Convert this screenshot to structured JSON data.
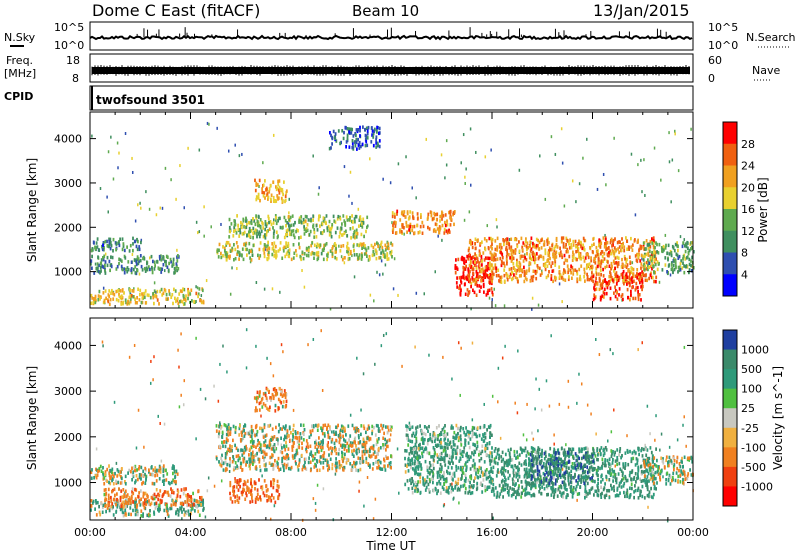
{
  "header": {
    "station": "Dome C East (fitACF)",
    "beam": "Beam 10",
    "date": "13/Jan/2015"
  },
  "top_panels": {
    "nsky_label": "N.Sky",
    "nsky_ticks": [
      "10^5",
      "10^0"
    ],
    "nsearch_label": "N.Search",
    "nsearch_ticks": [
      "10^5",
      "10^0"
    ],
    "freq_label": "Freq.",
    "freq_unit": "[MHz]",
    "freq_ticks": [
      "18",
      "8"
    ],
    "nave_label": "Nave",
    "nave_ticks": [
      "60",
      "0"
    ],
    "cpid_label": "CPID",
    "cpid_value": "twofsound 3501"
  },
  "colors": {
    "power_scale": [
      "#0000ff",
      "#2f4fb0",
      "#3f8f5f",
      "#5faa4f",
      "#e8d030",
      "#f0a020",
      "#f06010",
      "#ff0000"
    ],
    "velocity_scale": [
      "#1f3fa0",
      "#3a8a6a",
      "#2e9a7a",
      "#50c040",
      "#c8c8c0",
      "#f0b040",
      "#f08020",
      "#f04010",
      "#ff0000"
    ]
  },
  "chart_data": [
    {
      "type": "heatmap",
      "title": "",
      "xlabel": "",
      "ylabel": "Slant Range [km]",
      "xlim": [
        "00:00",
        "24:00"
      ],
      "ylim": [
        180,
        4600
      ],
      "x_ticks": [
        "00:00",
        "04:00",
        "08:00",
        "12:00",
        "16:00",
        "20:00",
        "00:00"
      ],
      "y_ticks": [
        1000,
        2000,
        3000,
        4000
      ],
      "colorbar": {
        "label": "Power [dB]",
        "ticks": [
          "28",
          "24",
          "20",
          "16",
          "12",
          "8",
          "4"
        ],
        "range": [
          0,
          30
        ]
      },
      "echo_regions": [
        {
          "t_start": 0.0,
          "t_end": 4.5,
          "range_low": 300,
          "range_high": 650,
          "power_db": 18
        },
        {
          "t_start": 0.0,
          "t_end": 3.5,
          "range_low": 1000,
          "range_high": 1400,
          "power_db": 10
        },
        {
          "t_start": 0.0,
          "t_end": 2.0,
          "range_low": 1500,
          "range_high": 1800,
          "power_db": 8
        },
        {
          "t_start": 5.0,
          "t_end": 12.0,
          "range_low": 1300,
          "range_high": 1700,
          "power_db": 16
        },
        {
          "t_start": 5.5,
          "t_end": 11.0,
          "range_low": 1800,
          "range_high": 2300,
          "power_db": 14
        },
        {
          "t_start": 6.5,
          "t_end": 7.8,
          "range_low": 2600,
          "range_high": 3100,
          "power_db": 20
        },
        {
          "t_start": 9.5,
          "t_end": 11.5,
          "range_low": 3800,
          "range_high": 4300,
          "power_db": 6
        },
        {
          "t_start": 12.0,
          "t_end": 14.5,
          "range_low": 1900,
          "range_high": 2400,
          "power_db": 22
        },
        {
          "t_start": 14.5,
          "t_end": 16.0,
          "range_low": 500,
          "range_high": 1400,
          "power_db": 28
        },
        {
          "t_start": 15.0,
          "t_end": 22.5,
          "range_low": 800,
          "range_high": 1800,
          "power_db": 22
        },
        {
          "t_start": 20.0,
          "t_end": 22.0,
          "range_low": 400,
          "range_high": 1000,
          "power_db": 26
        },
        {
          "t_start": 22.0,
          "t_end": 24.0,
          "range_low": 1000,
          "range_high": 1700,
          "power_db": 12
        }
      ]
    },
    {
      "type": "heatmap",
      "title": "",
      "xlabel": "Time UT",
      "ylabel": "Slant Range [km]",
      "xlim": [
        "00:00",
        "24:00"
      ],
      "ylim": [
        180,
        4600
      ],
      "x_ticks": [
        "00:00",
        "04:00",
        "08:00",
        "12:00",
        "16:00",
        "20:00",
        "00:00"
      ],
      "y_ticks": [
        1000,
        2000,
        3000,
        4000
      ],
      "colorbar": {
        "label": "Velocity [m s^-1]",
        "ticks": [
          "1000",
          "500",
          "100",
          "25",
          "-25",
          "-100",
          "-500",
          "-1000"
        ],
        "range": [
          -1000,
          1000
        ]
      },
      "echo_regions": [
        {
          "t_start": 0.0,
          "t_end": 4.5,
          "range_low": 300,
          "range_high": 650,
          "velocity": 150
        },
        {
          "t_start": 0.0,
          "t_end": 3.5,
          "range_low": 1000,
          "range_high": 1400,
          "velocity": 0
        },
        {
          "t_start": 0.5,
          "t_end": 4.5,
          "range_low": 500,
          "range_high": 900,
          "velocity": -200
        },
        {
          "t_start": 5.0,
          "t_end": 12.0,
          "range_low": 1300,
          "range_high": 2300,
          "velocity": 0
        },
        {
          "t_start": 5.5,
          "t_end": 7.5,
          "range_low": 600,
          "range_high": 1100,
          "velocity": -300
        },
        {
          "t_start": 6.5,
          "t_end": 7.8,
          "range_low": 2600,
          "range_high": 3100,
          "velocity": -150
        },
        {
          "t_start": 12.5,
          "t_end": 16.0,
          "range_low": 800,
          "range_high": 2300,
          "velocity": 200
        },
        {
          "t_start": 16.0,
          "t_end": 22.5,
          "range_low": 700,
          "range_high": 1800,
          "velocity": 250
        },
        {
          "t_start": 17.5,
          "t_end": 20.0,
          "range_low": 1000,
          "range_high": 1700,
          "velocity": 700
        },
        {
          "t_start": 22.0,
          "t_end": 24.0,
          "range_low": 1000,
          "range_high": 1600,
          "velocity": 0
        }
      ]
    }
  ]
}
